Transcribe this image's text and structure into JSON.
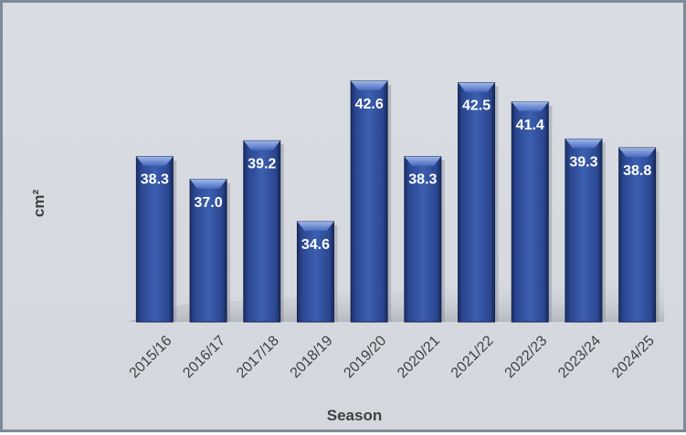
{
  "chart_data": {
    "type": "bar",
    "categories": [
      "2015/16",
      "2016/17",
      "2017/18",
      "2018/19",
      "2019/20",
      "2020/21",
      "2021/22",
      "2022/23",
      "2023/24",
      "2024/25"
    ],
    "values": [
      38.3,
      37.0,
      39.2,
      34.6,
      42.6,
      38.3,
      42.5,
      41.4,
      39.3,
      38.8
    ],
    "value_labels": [
      "38.3",
      "37.0",
      "39.2",
      "34.6",
      "42.6",
      "38.3",
      "42.5",
      "41.4",
      "39.3",
      "38.8"
    ],
    "title": "",
    "xlabel": "Season",
    "ylabel": "cm²",
    "ylim": [
      28.9,
      42.9
    ],
    "grid": false,
    "legend": "none",
    "bar_color": "#2e4d96",
    "label_color": "#ffffff",
    "background_color": "#d6dae0"
  }
}
